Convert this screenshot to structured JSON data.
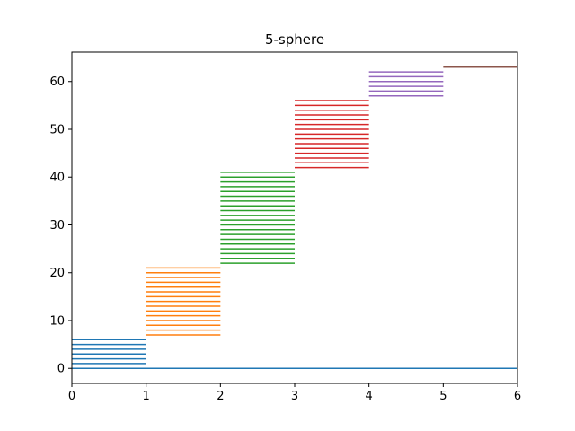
{
  "chart_data": {
    "type": "barcode",
    "title": "5-sphere",
    "xlabel": "",
    "ylabel": "",
    "xlim": [
      0,
      6
    ],
    "ylim": [
      -3.15,
      66.15
    ],
    "x_ticks": [
      "0",
      "1",
      "2",
      "3",
      "4",
      "5",
      "6"
    ],
    "y_ticks": [
      "0",
      "10",
      "20",
      "30",
      "40",
      "50",
      "60"
    ],
    "grid": false,
    "legend": "none",
    "series": [
      {
        "color": "#1f77b4",
        "x_start": 0,
        "x_end": 1,
        "y_values": [
          1,
          2,
          3,
          4,
          5,
          6
        ]
      },
      {
        "color": "#1f77b4",
        "x_start": 0,
        "x_end": 6,
        "y_values": [
          0
        ]
      },
      {
        "color": "#ff7f0e",
        "x_start": 1,
        "x_end": 2,
        "y_values": [
          7,
          8,
          9,
          10,
          11,
          12,
          13,
          14,
          15,
          16,
          17,
          18,
          19,
          20,
          21
        ]
      },
      {
        "color": "#2ca02c",
        "x_start": 2,
        "x_end": 3,
        "y_values": [
          22,
          23,
          24,
          25,
          26,
          27,
          28,
          29,
          30,
          31,
          32,
          33,
          34,
          35,
          36,
          37,
          38,
          39,
          40,
          41
        ]
      },
      {
        "color": "#d62728",
        "x_start": 3,
        "x_end": 4,
        "y_values": [
          42,
          43,
          44,
          45,
          46,
          47,
          48,
          49,
          50,
          51,
          52,
          53,
          54,
          55,
          56
        ]
      },
      {
        "color": "#9467bd",
        "x_start": 4,
        "x_end": 5,
        "y_values": [
          57,
          58,
          59,
          60,
          61,
          62
        ]
      },
      {
        "color": "#8c564b",
        "x_start": 5,
        "x_end": 6,
        "y_values": [
          63
        ]
      }
    ]
  }
}
